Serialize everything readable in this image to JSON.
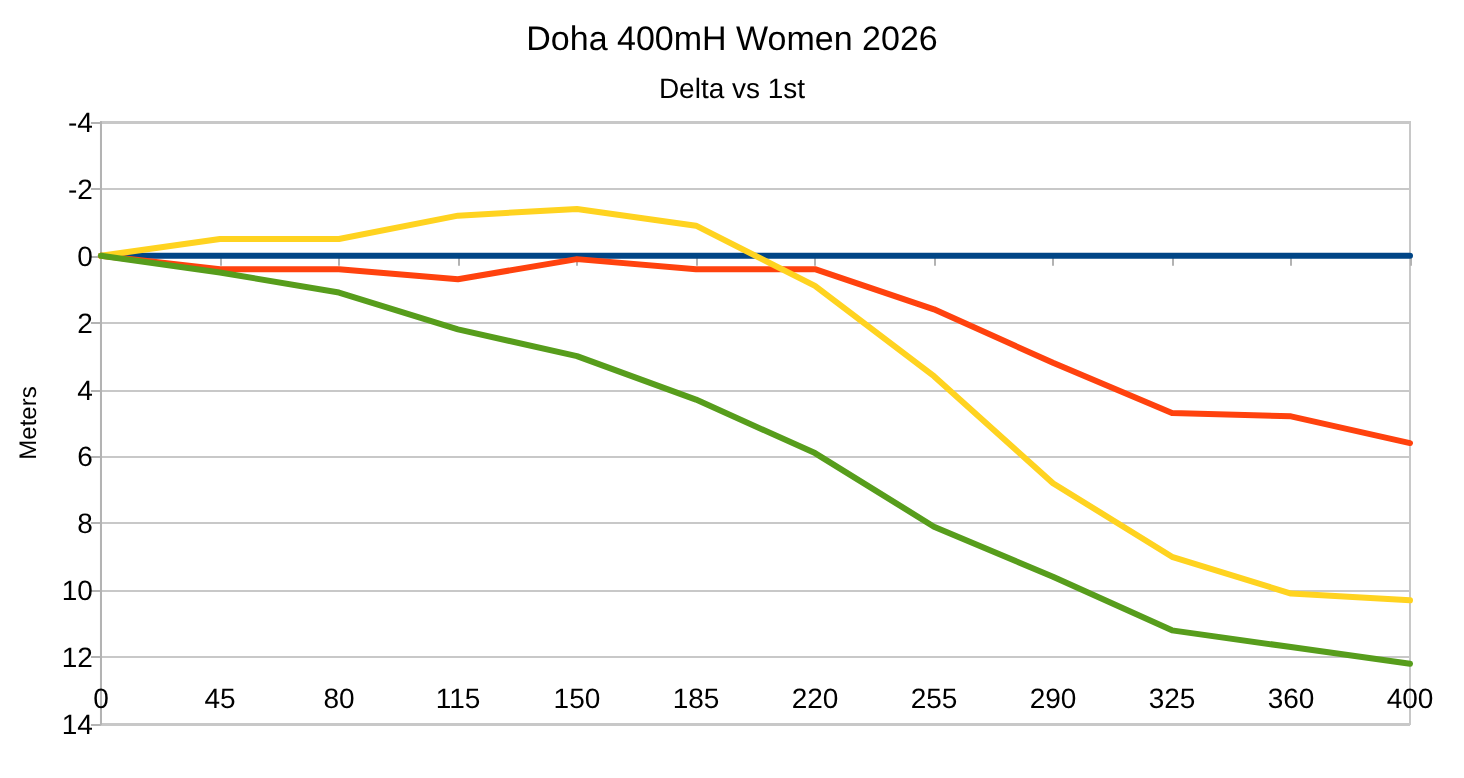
{
  "chart_data": {
    "type": "line",
    "title": "Doha 400mH Women 2026",
    "subtitle": "Delta vs 1st",
    "ylabel": "Meters",
    "categories": [
      "0",
      "45",
      "80",
      "115",
      "150",
      "185",
      "220",
      "255",
      "290",
      "325",
      "360",
      "400"
    ],
    "ylim": [
      14,
      -4
    ],
    "yticks": [
      -4,
      -2,
      0,
      2,
      4,
      6,
      8,
      10,
      12,
      14
    ],
    "grid": "y",
    "marker": "none",
    "line_style": "solid",
    "series": [
      {
        "color": "#004586",
        "values": [
          0,
          0,
          0,
          0,
          0,
          0,
          0,
          0,
          0,
          0,
          0,
          0
        ]
      },
      {
        "color": "#ff420e",
        "values": [
          0,
          0.4,
          0.4,
          0.7,
          0.1,
          0.4,
          0.4,
          1.6,
          3.2,
          4.7,
          4.8,
          5.6
        ]
      },
      {
        "color": "#ffd320",
        "values": [
          0,
          -0.5,
          -0.5,
          -1.2,
          -1.4,
          -0.9,
          0.9,
          3.6,
          6.8,
          9.0,
          10.1,
          10.3
        ]
      },
      {
        "color": "#579d1c",
        "values": [
          0,
          0.5,
          1.1,
          2.2,
          3.0,
          4.3,
          5.9,
          8.1,
          9.6,
          11.2,
          11.7,
          12.2
        ]
      }
    ]
  }
}
